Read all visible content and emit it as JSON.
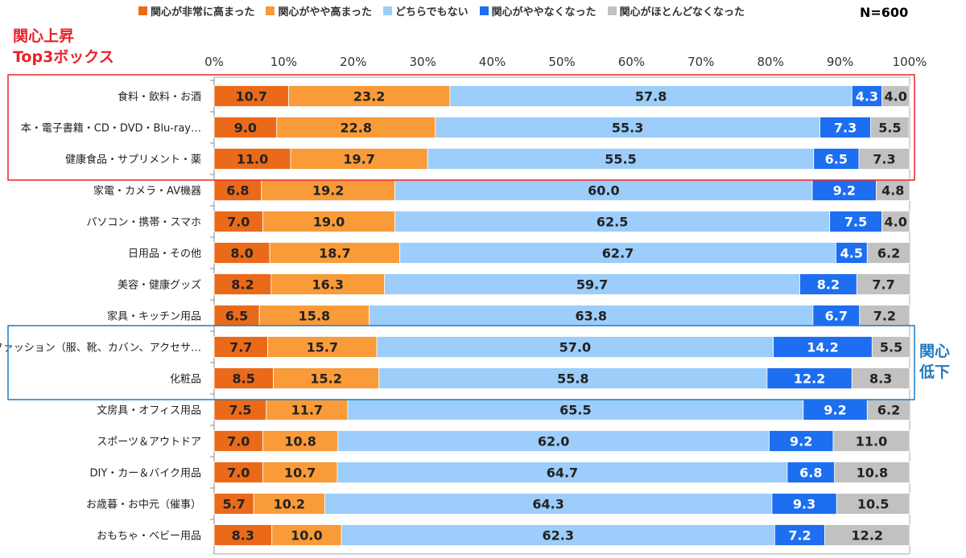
{
  "legend": {
    "items": [
      {
        "label": "関心が非常に高まった",
        "color": "#ea6a1a"
      },
      {
        "label": "関心がやや高まった",
        "color": "#f99b38"
      },
      {
        "label": "どちらでもない",
        "color": "#9ccdfb"
      },
      {
        "label": "関心がややなくなった",
        "color": "#1d6ef0"
      },
      {
        "label": "関心がほとんどなくなった",
        "color": "#c1c1c1"
      }
    ]
  },
  "sample_size": "N=600",
  "callouts": {
    "top_line1": "関心上昇",
    "top_line2": "Top3ボックス",
    "top_color": "#e8222a",
    "right_line1": "関心",
    "right_line2": "低下",
    "right_color": "#1f7ac0"
  },
  "chart_data": {
    "type": "bar",
    "orientation": "horizontal",
    "stacked": true,
    "stack_mode": "percent",
    "xlim": [
      0,
      100
    ],
    "x_ticks": [
      "0%",
      "10%",
      "20%",
      "30%",
      "40%",
      "50%",
      "60%",
      "70%",
      "80%",
      "90%",
      "100%"
    ],
    "grid": false,
    "legend_position": "top",
    "categories": [
      "食料・飲料・お酒",
      "本・電子書籍・CD・DVD・Blu-ray…",
      "健康食品・サプリメント・薬",
      "家電・カメラ・AV機器",
      "パソコン・携帯・スマホ",
      "日用品・その他",
      "美容・健康グッズ",
      "家具・キッチン用品",
      "ファッション（服、靴、カバン、アクセサ…",
      "化粧品",
      "文房具・オフィス用品",
      "スポーツ＆アウトドア",
      "DIY・カー＆バイク用品",
      "お歳暮・お中元（催事）",
      "おもちゃ・ベビー用品"
    ],
    "series": [
      {
        "name": "関心が非常に高まった",
        "color": "#ea6a1a",
        "text_color": "#222222",
        "values": [
          10.7,
          9.0,
          11.0,
          6.8,
          7.0,
          8.0,
          8.2,
          6.5,
          7.7,
          8.5,
          7.5,
          7.0,
          7.0,
          5.7,
          8.3
        ]
      },
      {
        "name": "関心がやや高まった",
        "color": "#f99b38",
        "text_color": "#222222",
        "values": [
          23.2,
          22.8,
          19.7,
          19.2,
          19.0,
          18.7,
          16.3,
          15.8,
          15.7,
          15.2,
          11.7,
          10.8,
          10.7,
          10.2,
          10.0
        ]
      },
      {
        "name": "どちらでもない",
        "color": "#9ccdfb",
        "text_color": "#222222",
        "values": [
          57.8,
          55.3,
          55.5,
          60.0,
          62.5,
          62.7,
          59.7,
          63.8,
          57.0,
          55.8,
          65.5,
          62.0,
          64.7,
          64.3,
          62.3
        ]
      },
      {
        "name": "関心がややなくなった",
        "color": "#1d6ef0",
        "text_color": "#ffffff",
        "values": [
          4.3,
          7.3,
          6.5,
          9.2,
          7.5,
          4.5,
          8.2,
          6.7,
          14.2,
          12.2,
          9.2,
          9.2,
          6.8,
          9.3,
          7.2
        ]
      },
      {
        "name": "関心がほとんどなくなった",
        "color": "#c1c1c1",
        "text_color": "#222222",
        "values": [
          4.0,
          5.5,
          7.3,
          4.8,
          4.0,
          6.2,
          7.7,
          7.2,
          5.5,
          8.3,
          6.2,
          11.0,
          10.8,
          10.5,
          12.2
        ]
      }
    ],
    "highlight_groups": [
      {
        "name": "関心上昇 Top3",
        "rows": [
          0,
          2
        ],
        "color": "#e8222a"
      },
      {
        "name": "関心低下",
        "rows": [
          8,
          9
        ],
        "color": "#1f7ac0"
      }
    ]
  }
}
